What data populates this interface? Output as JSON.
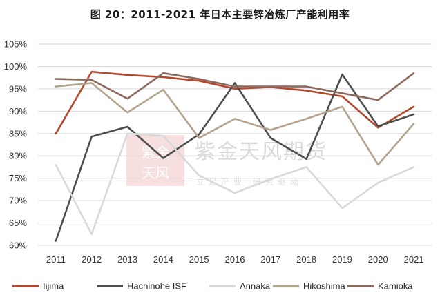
{
  "title": "图 20：2011-2021 年日本主要锌冶炼厂产能利用率",
  "watermark": {
    "name": "紫金天风期货",
    "subtitle": "立足产业 研究驱动",
    "seal_text": "紫金天风"
  },
  "chart_data": {
    "type": "line",
    "title": "图 20：2011-2021 年日本主要锌冶炼厂产能利用率",
    "xlabel": "",
    "ylabel": "",
    "x": [
      "2011",
      "2012",
      "2013",
      "2014",
      "2015",
      "2016",
      "2017",
      "2018",
      "2019",
      "2020",
      "2021"
    ],
    "ylim": [
      60,
      105
    ],
    "yticks": [
      "60%",
      "65%",
      "70%",
      "75%",
      "80%",
      "85%",
      "90%",
      "95%",
      "100%",
      "105%"
    ],
    "grid": true,
    "legend_position": "bottom",
    "series": [
      {
        "name": "Iijima",
        "color": "#b5472c",
        "values": [
          85.0,
          98.8,
          98.1,
          97.6,
          96.8,
          95.0,
          95.4,
          94.6,
          93.3,
          86.3,
          91.0
        ]
      },
      {
        "name": "Hachinohe ISF",
        "color": "#4d4d4d",
        "values": [
          61.0,
          84.3,
          86.5,
          79.5,
          84.8,
          96.3,
          84.0,
          79.3,
          98.2,
          86.6,
          89.3
        ]
      },
      {
        "name": "Annaka",
        "color": "#d9d9d9",
        "values": [
          78.0,
          62.5,
          85.0,
          84.5,
          75.6,
          71.7,
          74.8,
          77.5,
          68.3,
          74.0,
          77.5
        ]
      },
      {
        "name": "Hikoshima",
        "color": "#b3a38c",
        "values": [
          95.5,
          96.3,
          89.7,
          94.8,
          84.0,
          88.3,
          85.8,
          88.3,
          91.0,
          78.0,
          87.2
        ]
      },
      {
        "name": "Kamioka",
        "color": "#8b6a5e",
        "values": [
          97.2,
          97.0,
          92.8,
          98.5,
          97.2,
          95.5,
          95.5,
          95.5,
          94.0,
          92.5,
          98.5
        ]
      }
    ]
  }
}
